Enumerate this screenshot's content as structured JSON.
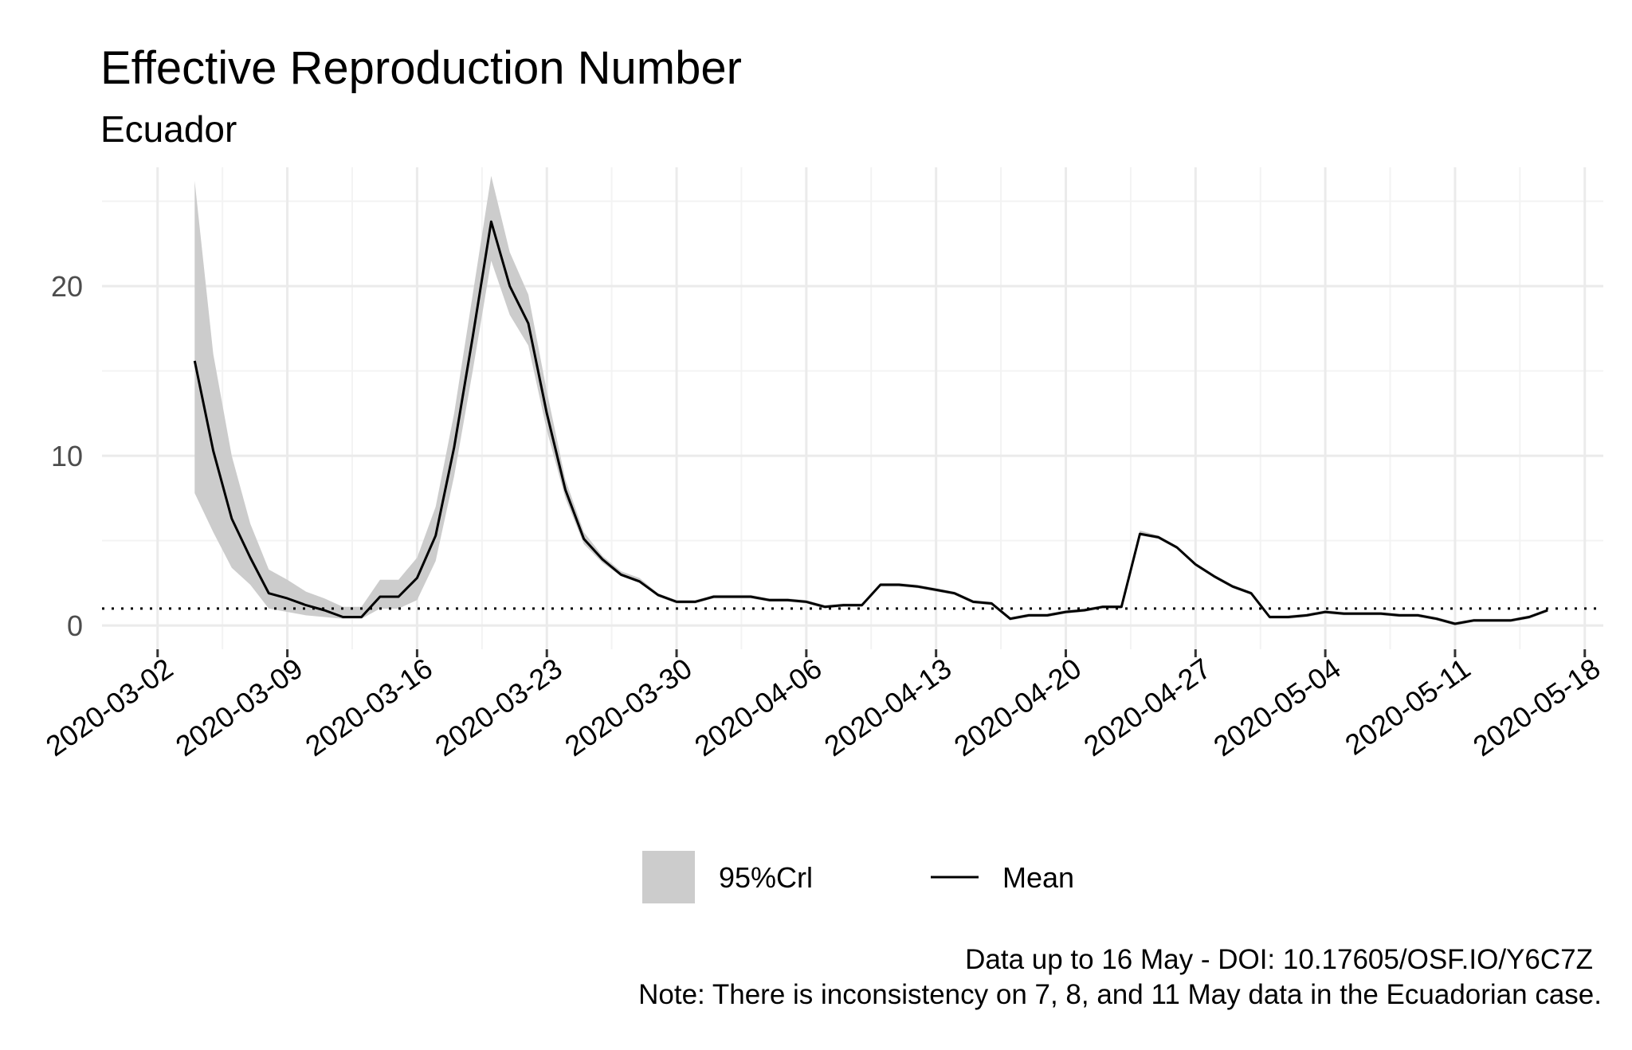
{
  "chart_data": {
    "type": "area",
    "title": "Effective Reproduction Number",
    "subtitle": "Ecuador",
    "xlabel": "",
    "ylabel": "",
    "x_ticks": [
      "2020-03-02",
      "2020-03-09",
      "2020-03-16",
      "2020-03-23",
      "2020-03-30",
      "2020-04-06",
      "2020-04-13",
      "2020-04-20",
      "2020-04-27",
      "2020-05-04",
      "2020-05-11",
      "2020-05-18"
    ],
    "y_ticks": [
      0,
      10,
      20
    ],
    "xlim": [
      "2020-02-28",
      "2020-05-19"
    ],
    "ylim": [
      -1.4,
      27
    ],
    "reference_line": 1,
    "grid": true,
    "legend_position": "bottom",
    "legend": [
      {
        "label": "95%Crl",
        "kind": "band",
        "color": "#cccccc"
      },
      {
        "label": "Mean",
        "kind": "line",
        "color": "#000000"
      }
    ],
    "caption_lines": [
      "Data up to 16 May - DOI: 10.17605/OSF.IO/Y6C7Z",
      "Note: There is inconsistency on 7, 8, and 11 May data in the Ecuadorian case."
    ],
    "x": [
      "2020-03-04",
      "2020-03-05",
      "2020-03-06",
      "2020-03-07",
      "2020-03-08",
      "2020-03-09",
      "2020-03-10",
      "2020-03-11",
      "2020-03-12",
      "2020-03-13",
      "2020-03-14",
      "2020-03-15",
      "2020-03-16",
      "2020-03-17",
      "2020-03-18",
      "2020-03-19",
      "2020-03-20",
      "2020-03-21",
      "2020-03-22",
      "2020-03-23",
      "2020-03-24",
      "2020-03-25",
      "2020-03-26",
      "2020-03-27",
      "2020-03-28",
      "2020-03-29",
      "2020-03-30",
      "2020-03-31",
      "2020-04-01",
      "2020-04-02",
      "2020-04-03",
      "2020-04-04",
      "2020-04-05",
      "2020-04-06",
      "2020-04-07",
      "2020-04-08",
      "2020-04-09",
      "2020-04-10",
      "2020-04-11",
      "2020-04-12",
      "2020-04-13",
      "2020-04-14",
      "2020-04-15",
      "2020-04-16",
      "2020-04-17",
      "2020-04-18",
      "2020-04-19",
      "2020-04-20",
      "2020-04-21",
      "2020-04-22",
      "2020-04-23",
      "2020-04-24",
      "2020-04-25",
      "2020-04-26",
      "2020-04-27",
      "2020-04-28",
      "2020-04-29",
      "2020-04-30",
      "2020-05-01",
      "2020-05-02",
      "2020-05-03",
      "2020-05-04",
      "2020-05-05",
      "2020-05-06",
      "2020-05-07",
      "2020-05-08",
      "2020-05-09",
      "2020-05-10",
      "2020-05-11",
      "2020-05-12",
      "2020-05-13",
      "2020-05-14",
      "2020-05-15",
      "2020-05-16"
    ],
    "series": [
      {
        "name": "Mean",
        "values": [
          15.6,
          10.3,
          6.3,
          4.0,
          1.9,
          1.6,
          1.2,
          0.9,
          0.5,
          0.5,
          1.7,
          1.7,
          2.8,
          5.3,
          10.5,
          17.0,
          23.8,
          20.0,
          17.8,
          12.5,
          8.0,
          5.1,
          3.9,
          3.0,
          2.6,
          1.8,
          1.4,
          1.4,
          1.7,
          1.7,
          1.7,
          1.5,
          1.5,
          1.4,
          1.1,
          1.2,
          1.2,
          2.4,
          2.4,
          2.3,
          2.1,
          1.9,
          1.4,
          1.3,
          0.4,
          0.6,
          0.6,
          0.8,
          0.9,
          1.1,
          1.1,
          5.4,
          5.2,
          4.6,
          3.6,
          2.9,
          2.3,
          1.9,
          0.5,
          0.5,
          0.6,
          0.8,
          0.7,
          0.7,
          0.7,
          0.6,
          0.6,
          0.4,
          0.1,
          0.3,
          0.3,
          0.3,
          0.5,
          0.9
        ]
      },
      {
        "name": "95%Crl",
        "lower": [
          7.8,
          5.5,
          3.4,
          2.4,
          1.0,
          0.8,
          0.6,
          0.5,
          0.4,
          0.4,
          1.0,
          1.0,
          1.5,
          3.8,
          8.8,
          15.0,
          21.5,
          18.3,
          16.5,
          11.5,
          7.5,
          4.8,
          3.7,
          2.9,
          2.5,
          1.7,
          1.3,
          1.3,
          1.6,
          1.6,
          1.6,
          1.4,
          1.4,
          1.3,
          1.0,
          1.1,
          1.1,
          2.3,
          2.3,
          2.2,
          2.0,
          1.8,
          1.3,
          1.2,
          0.3,
          0.5,
          0.5,
          0.7,
          0.8,
          1.0,
          1.0,
          5.3,
          5.1,
          4.5,
          3.5,
          2.8,
          2.2,
          1.8,
          0.4,
          0.4,
          0.5,
          0.7,
          0.6,
          0.6,
          0.6,
          0.5,
          0.5,
          0.3,
          0.0,
          0.2,
          0.2,
          0.2,
          0.4,
          0.8
        ],
        "upper": [
          26.2,
          16.0,
          10.0,
          6.0,
          3.3,
          2.7,
          2.0,
          1.6,
          1.1,
          1.1,
          2.7,
          2.7,
          4.0,
          7.0,
          12.5,
          19.5,
          26.5,
          22.0,
          19.5,
          13.8,
          8.6,
          5.5,
          4.1,
          3.2,
          2.8,
          1.9,
          1.5,
          1.5,
          1.8,
          1.8,
          1.8,
          1.6,
          1.6,
          1.5,
          1.2,
          1.3,
          1.3,
          2.5,
          2.5,
          2.4,
          2.2,
          2.0,
          1.5,
          1.4,
          0.5,
          0.7,
          0.7,
          0.9,
          1.0,
          1.2,
          1.2,
          5.6,
          5.3,
          4.7,
          3.7,
          3.0,
          2.4,
          2.0,
          0.6,
          0.6,
          0.7,
          0.9,
          0.8,
          0.8,
          0.8,
          0.7,
          0.7,
          0.5,
          0.2,
          0.4,
          0.4,
          0.4,
          0.6,
          1.0
        ]
      }
    ]
  }
}
